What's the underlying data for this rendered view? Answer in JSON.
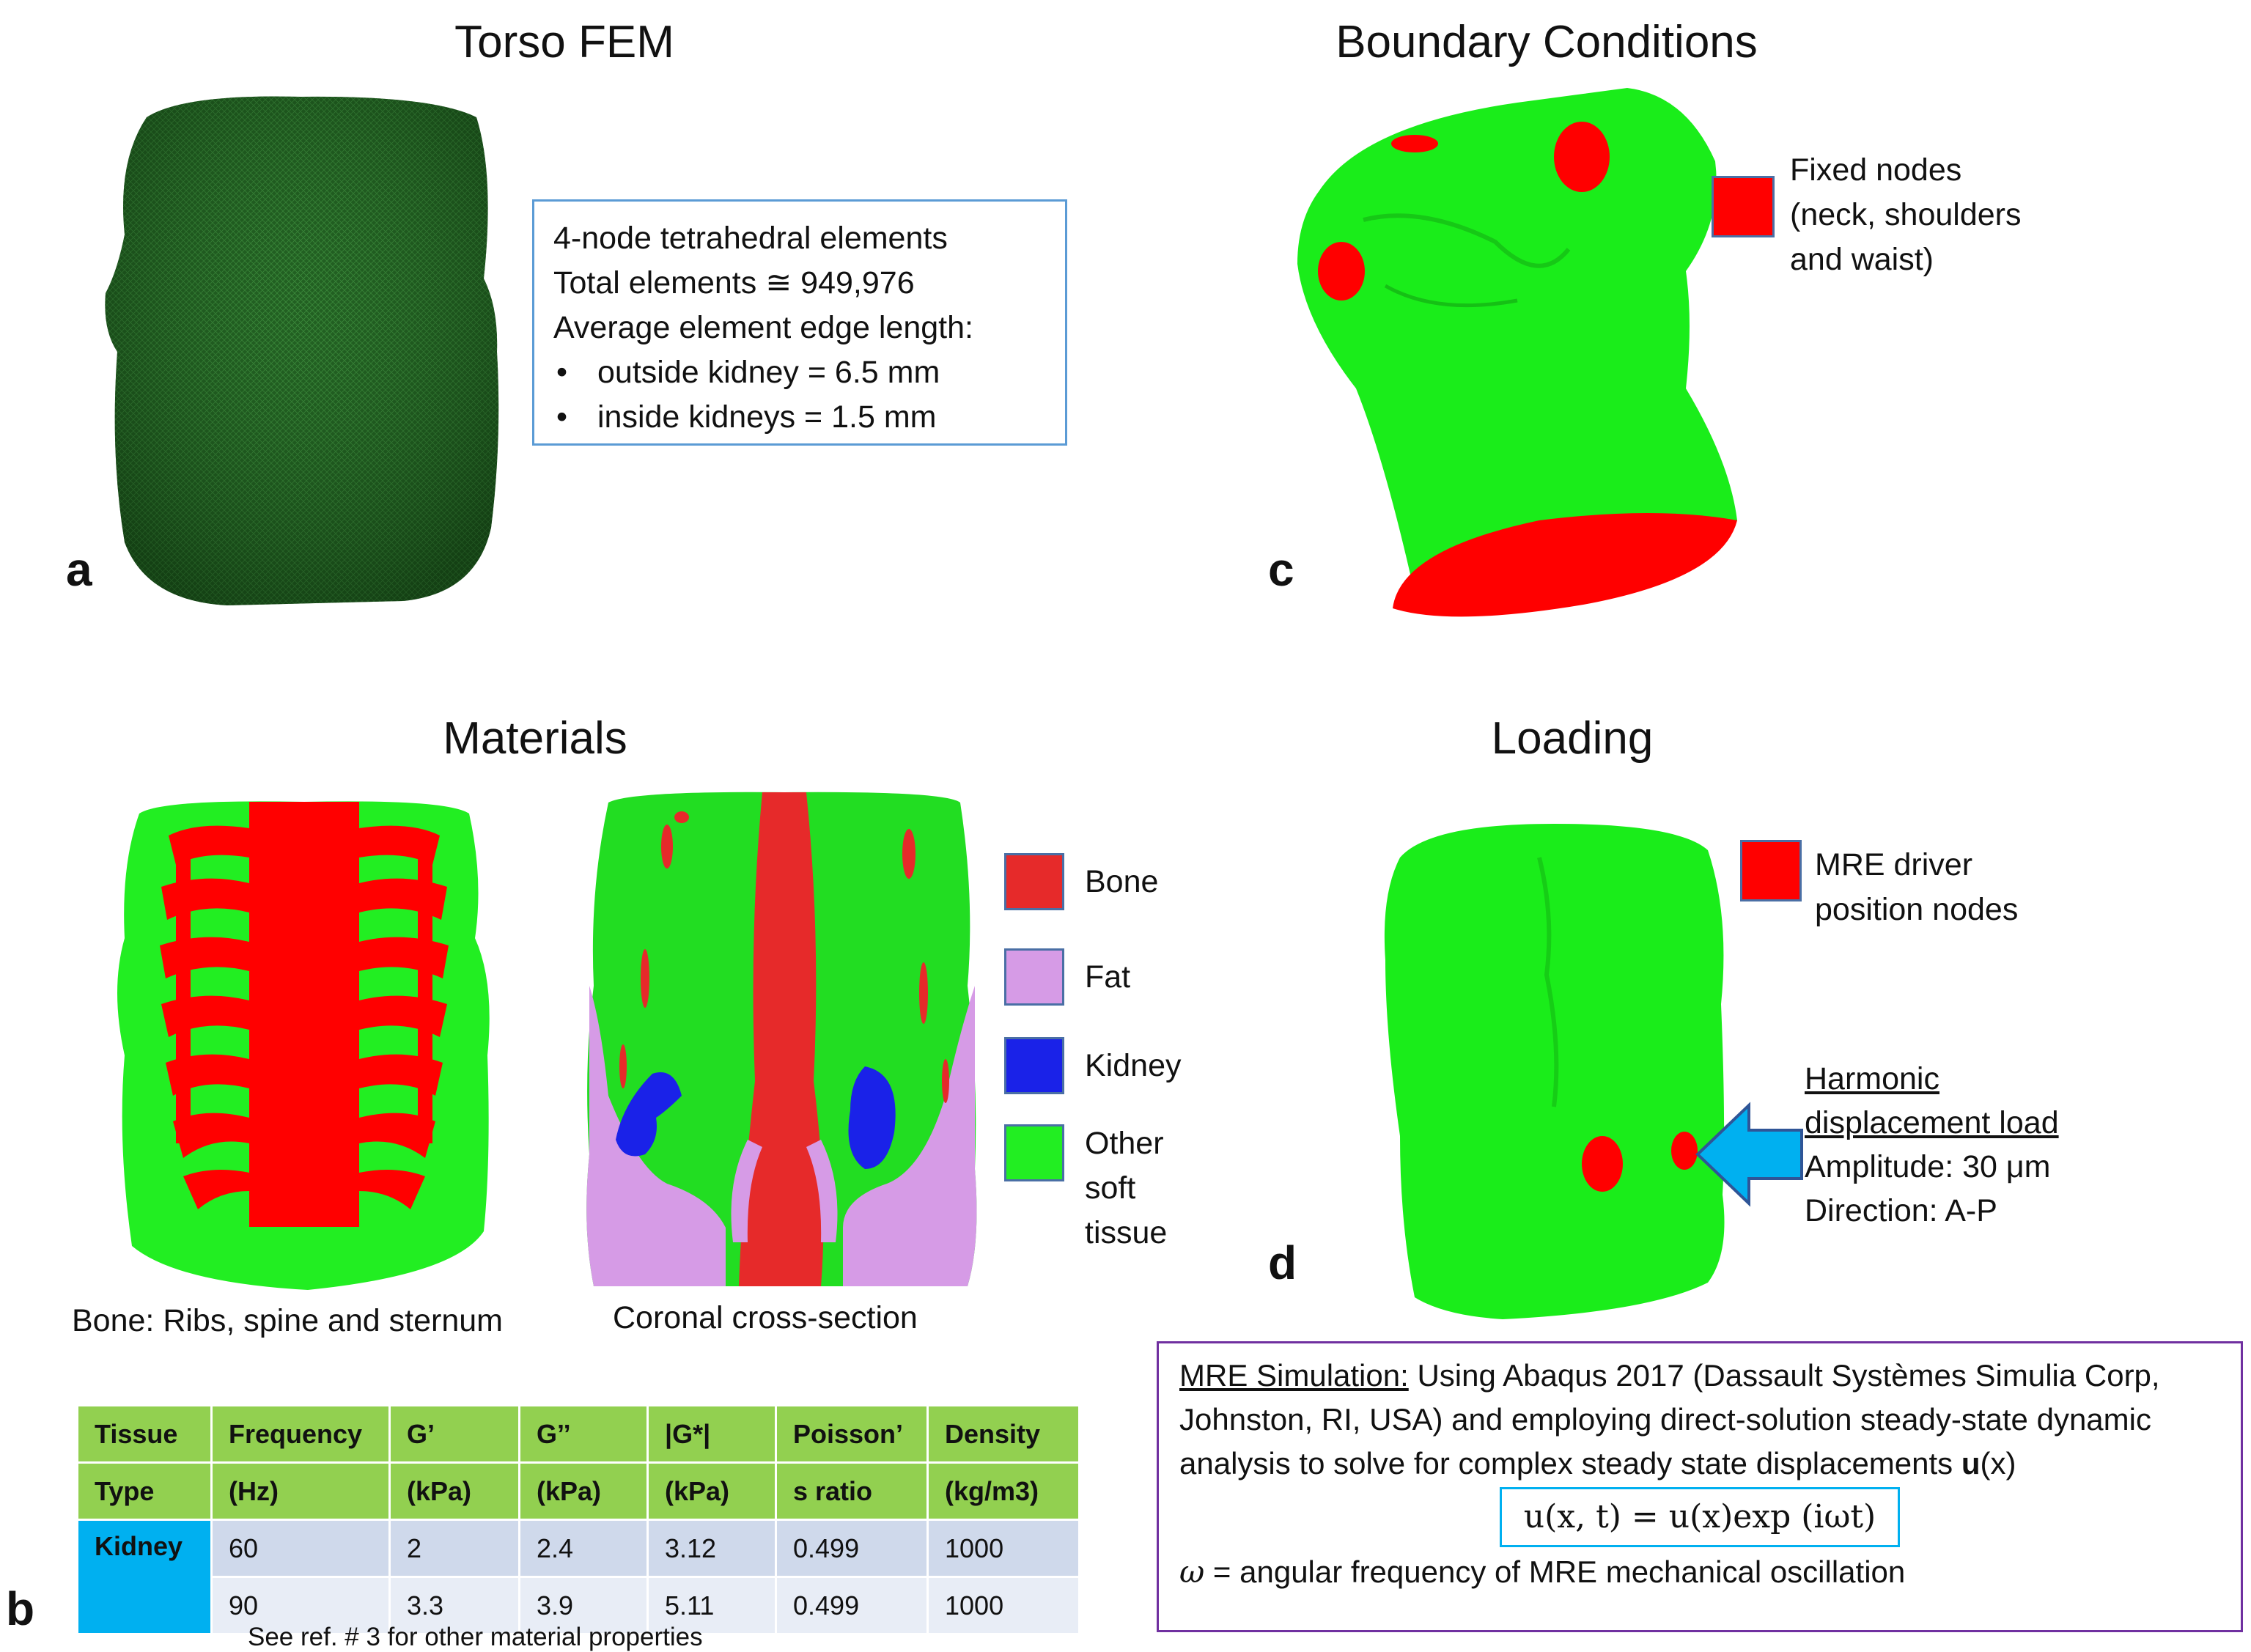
{
  "panels": {
    "a": {
      "letter": "a",
      "title": "Torso FEM",
      "info_lines": [
        "4-node tetrahedral elements",
        "Total elements ≅ 949,976",
        "Average element edge length:"
      ],
      "info_bullets": [
        "outside kidney = 6.5 mm",
        "inside kidneys = 1.5 mm"
      ]
    },
    "b": {
      "letter": "b",
      "title": "Materials",
      "caption_left": "Bone: Ribs, spine and sternum",
      "caption_right": "Coronal cross-section",
      "legend": [
        {
          "label": "Bone",
          "color": "#e62a2a"
        },
        {
          "label": "Fat",
          "color": "#d69be6"
        },
        {
          "label": "Kidney",
          "color": "#1a22e8"
        },
        {
          "label": "Other soft tissue",
          "color": "#22ee22"
        }
      ],
      "table": {
        "headers": [
          [
            "Tissue",
            "Type"
          ],
          [
            "Frequency",
            "(Hz)"
          ],
          [
            "G’",
            "(kPa)"
          ],
          [
            "G’’",
            "(kPa)"
          ],
          [
            "|G*|",
            "(kPa)"
          ],
          [
            "Poisson’",
            "s ratio"
          ],
          [
            "Density",
            "(kg/m3)"
          ]
        ],
        "tissue": "Kidney",
        "rows": [
          [
            "60",
            "2",
            "2.4",
            "3.12",
            "0.499",
            "1000"
          ],
          [
            "90",
            "3.3",
            "3.9",
            "5.11",
            "0.499",
            "1000"
          ]
        ],
        "note": "See ref. # 3 for other material properties"
      }
    },
    "c": {
      "letter": "c",
      "title": "Boundary Conditions",
      "legend_label": "Fixed nodes (neck, shoulders and waist)",
      "legend_color": "#ff0000"
    },
    "d": {
      "letter": "d",
      "title": "Loading",
      "legend_label": "MRE driver position nodes",
      "legend_color": "#ff0000",
      "load_title": "Harmonic displacement load",
      "amplitude": "Amplitude: 30 μm",
      "direction": "Direction: A-P",
      "arrow_color": "#00b0f0"
    }
  },
  "simulation": {
    "heading": "MRE Simulation:",
    "text": "Using Abaqus 2017 (Dassault Systèmes Simulia Corp, Johnston, RI, USA) and employing direct-solution steady-state dynamic analysis to solve for complex steady state displacements",
    "text_symbol": "u",
    "text_tail": "(x)",
    "equation": "u(x, t) = u(x)exp (iωt)",
    "omega_symbol": "ω",
    "omega_text": "= angular frequency of MRE mechanical oscillation"
  }
}
